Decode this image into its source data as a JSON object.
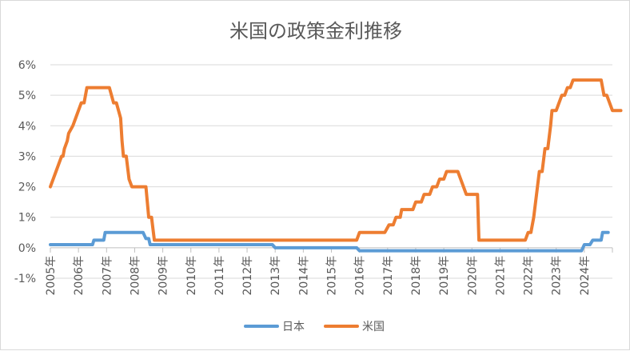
{
  "chart_data": {
    "type": "line",
    "title": "米国の政策金利推移",
    "xlabel": "",
    "ylabel": "",
    "ylim": [
      -1,
      6
    ],
    "y_ticks": [
      -1,
      0,
      1,
      2,
      3,
      4,
      5,
      6
    ],
    "y_tick_labels": [
      "-1%",
      "0%",
      "1%",
      "2%",
      "3%",
      "4%",
      "5%",
      "6%"
    ],
    "x_range": [
      2005,
      2025
    ],
    "x_ticks": [
      2005,
      2006,
      2007,
      2008,
      2009,
      2010,
      2011,
      2012,
      2013,
      2014,
      2015,
      2016,
      2017,
      2018,
      2019,
      2020,
      2021,
      2022,
      2023,
      2024
    ],
    "x_tick_labels": [
      "2005年",
      "2006年",
      "2007年",
      "2008年",
      "2009年",
      "2010年",
      "2011年",
      "2012年",
      "2013年",
      "2014年",
      "2015年",
      "2016年",
      "2017年",
      "2018年",
      "2019年",
      "2020年",
      "2021年",
      "2022年",
      "2023年",
      "2024年"
    ],
    "grid": true,
    "legend_position": "bottom",
    "series": [
      {
        "name": "日本",
        "color": "#5b9bd5",
        "points": [
          [
            2005.0,
            0.1
          ],
          [
            2006.5,
            0.1
          ],
          [
            2006.55,
            0.25
          ],
          [
            2006.9,
            0.25
          ],
          [
            2006.95,
            0.5
          ],
          [
            2008.3,
            0.5
          ],
          [
            2008.4,
            0.3
          ],
          [
            2008.5,
            0.3
          ],
          [
            2008.55,
            0.1
          ],
          [
            2012.9,
            0.1
          ],
          [
            2013.0,
            0.0
          ],
          [
            2015.9,
            0.0
          ],
          [
            2016.0,
            -0.1
          ],
          [
            2023.9,
            -0.1
          ],
          [
            2024.0,
            0.1
          ],
          [
            2024.2,
            0.1
          ],
          [
            2024.3,
            0.25
          ],
          [
            2024.6,
            0.25
          ],
          [
            2024.65,
            0.5
          ],
          [
            2024.85,
            0.5
          ]
        ]
      },
      {
        "name": "米国",
        "color": "#ed7d31",
        "points": [
          [
            2005.0,
            2.0
          ],
          [
            2005.1,
            2.25
          ],
          [
            2005.2,
            2.5
          ],
          [
            2005.3,
            2.75
          ],
          [
            2005.4,
            3.0
          ],
          [
            2005.45,
            3.0
          ],
          [
            2005.5,
            3.25
          ],
          [
            2005.6,
            3.5
          ],
          [
            2005.65,
            3.75
          ],
          [
            2005.8,
            4.0
          ],
          [
            2005.9,
            4.25
          ],
          [
            2006.0,
            4.5
          ],
          [
            2006.1,
            4.75
          ],
          [
            2006.2,
            4.75
          ],
          [
            2006.3,
            5.25
          ],
          [
            2007.1,
            5.25
          ],
          [
            2007.25,
            4.75
          ],
          [
            2007.35,
            4.75
          ],
          [
            2007.5,
            4.25
          ],
          [
            2007.55,
            3.5
          ],
          [
            2007.6,
            3.0
          ],
          [
            2007.7,
            3.0
          ],
          [
            2007.8,
            2.25
          ],
          [
            2007.9,
            2.0
          ],
          [
            2008.4,
            2.0
          ],
          [
            2008.5,
            1.0
          ],
          [
            2008.6,
            1.0
          ],
          [
            2008.7,
            0.25
          ],
          [
            2015.9,
            0.25
          ],
          [
            2016.0,
            0.5
          ],
          [
            2016.9,
            0.5
          ],
          [
            2017.05,
            0.75
          ],
          [
            2017.2,
            0.75
          ],
          [
            2017.3,
            1.0
          ],
          [
            2017.45,
            1.0
          ],
          [
            2017.5,
            1.25
          ],
          [
            2017.9,
            1.25
          ],
          [
            2018.0,
            1.5
          ],
          [
            2018.2,
            1.5
          ],
          [
            2018.3,
            1.75
          ],
          [
            2018.5,
            1.75
          ],
          [
            2018.6,
            2.0
          ],
          [
            2018.75,
            2.0
          ],
          [
            2018.85,
            2.25
          ],
          [
            2019.0,
            2.25
          ],
          [
            2019.1,
            2.5
          ],
          [
            2019.5,
            2.5
          ],
          [
            2019.6,
            2.25
          ],
          [
            2019.7,
            2.0
          ],
          [
            2019.8,
            1.75
          ],
          [
            2020.2,
            1.75
          ],
          [
            2020.25,
            0.25
          ],
          [
            2021.9,
            0.25
          ],
          [
            2022.0,
            0.5
          ],
          [
            2022.1,
            0.5
          ],
          [
            2022.2,
            1.0
          ],
          [
            2022.3,
            1.75
          ],
          [
            2022.4,
            2.5
          ],
          [
            2022.5,
            2.5
          ],
          [
            2022.6,
            3.25
          ],
          [
            2022.7,
            3.25
          ],
          [
            2022.8,
            4.0
          ],
          [
            2022.85,
            4.5
          ],
          [
            2023.0,
            4.5
          ],
          [
            2023.1,
            4.75
          ],
          [
            2023.2,
            5.0
          ],
          [
            2023.3,
            5.0
          ],
          [
            2023.4,
            5.25
          ],
          [
            2023.5,
            5.25
          ],
          [
            2023.6,
            5.5
          ],
          [
            2024.6,
            5.5
          ],
          [
            2024.7,
            5.0
          ],
          [
            2024.8,
            5.0
          ],
          [
            2024.9,
            4.75
          ],
          [
            2025.0,
            4.5
          ],
          [
            2025.3,
            4.5
          ]
        ]
      }
    ]
  }
}
